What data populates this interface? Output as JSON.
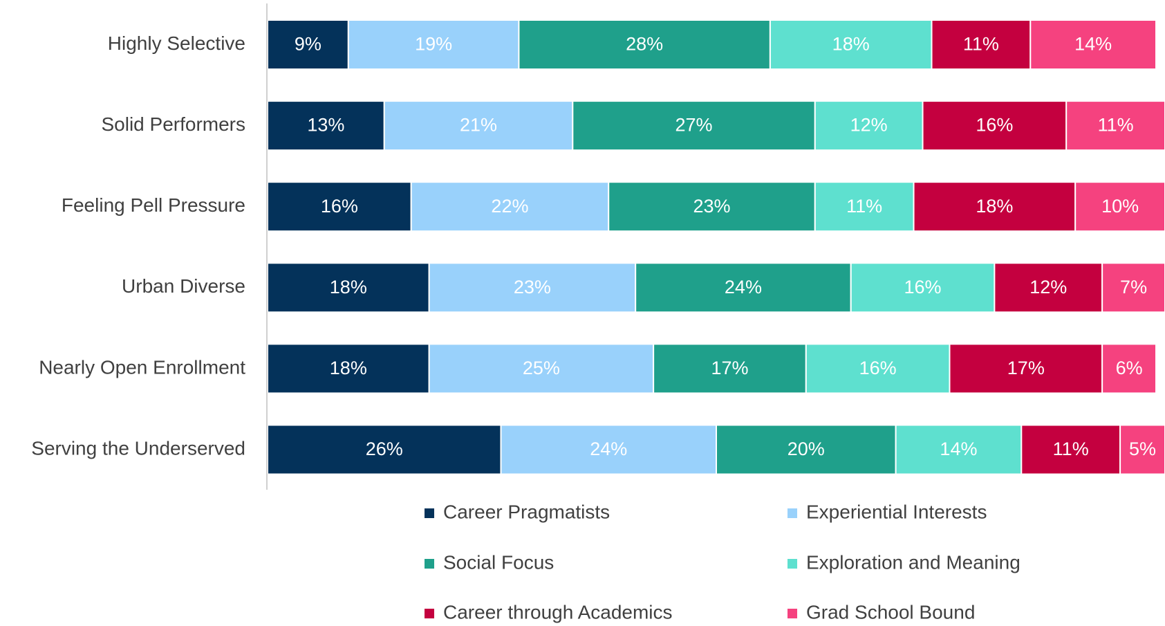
{
  "chart_data": {
    "type": "stacked-bar",
    "orientation": "horizontal",
    "categories": [
      "Highly Selective",
      "Solid Performers",
      "Feeling Pell Pressure",
      "Urban Diverse",
      "Nearly Open Enrollment",
      "Serving the Underserved"
    ],
    "xlim": [
      0,
      100
    ],
    "series": [
      {
        "name": "Career Pragmatists",
        "color": "#04325a",
        "values": [
          9,
          13,
          16,
          18,
          18,
          26
        ],
        "value_labels": [
          "9%",
          "13%",
          "16%",
          "18%",
          "18%",
          "26%"
        ]
      },
      {
        "name": "Experiential Interests",
        "color": "#99d1fb",
        "values": [
          19,
          21,
          22,
          23,
          25,
          24
        ],
        "value_labels": [
          "19%",
          "21%",
          "22%",
          "23%",
          "25%",
          "24%"
        ]
      },
      {
        "name": "Social Focus",
        "color": "#1fa08b",
        "values": [
          28,
          27,
          23,
          24,
          17,
          20
        ],
        "value_labels": [
          "28%",
          "27%",
          "23%",
          "24%",
          "17%",
          "20%"
        ]
      },
      {
        "name": "Exploration and Meaning",
        "color": "#5ee0cf",
        "values": [
          18,
          12,
          11,
          16,
          16,
          14
        ],
        "value_labels": [
          "18%",
          "12%",
          "11%",
          "16%",
          "16%",
          "14%"
        ]
      },
      {
        "name": "Career through Academics",
        "color": "#c4003f",
        "values": [
          11,
          16,
          18,
          12,
          17,
          11
        ],
        "value_labels": [
          "11%",
          "16%",
          "18%",
          "12%",
          "17%",
          "11%"
        ]
      },
      {
        "name": "Grad School Bound",
        "color": "#f5427f",
        "values": [
          14,
          11,
          10,
          7,
          6,
          5
        ],
        "value_labels": [
          "14%",
          "11%",
          "10%",
          "7%",
          "6%",
          "5%"
        ]
      }
    ],
    "legend": "bottom"
  }
}
